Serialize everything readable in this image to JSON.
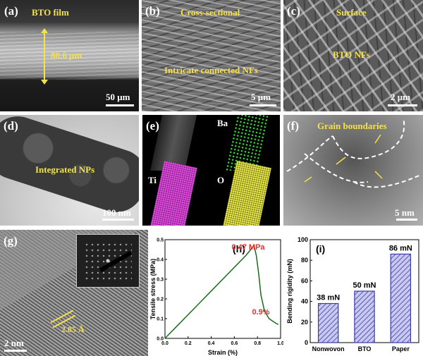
{
  "panels": {
    "a": {
      "label": "(a)",
      "title": "BTO film",
      "thickness": "88.6 μm",
      "scale": "50 μm"
    },
    "b": {
      "label": "(b)",
      "title": "Cross-sectional",
      "subtitle": "Intricate connected NFs",
      "scale": "5 μm"
    },
    "c": {
      "label": "(c)",
      "title": "Surface",
      "subtitle": "BTO NFs",
      "scale": "2 μm"
    },
    "d": {
      "label": "(d)",
      "title": "Integrated NPs",
      "scale": "100 nm"
    },
    "e": {
      "label": "(e)",
      "maps": [
        "Ba",
        "Ti",
        "O"
      ]
    },
    "f": {
      "label": "(f)",
      "title": "Grain boundaries",
      "scale": "5 nm"
    },
    "g": {
      "label": "(g)",
      "spacing": "2.85 Å",
      "scale": "2 nm"
    },
    "h": {
      "label": "(h)",
      "peak_label": "0.47 MPa",
      "strain_label": "0.9%"
    },
    "i": {
      "label": "(i)"
    }
  },
  "colors": {
    "accent": "#f5e24a",
    "red": "#e53030",
    "green": "#1a6b1a",
    "bar": "#3a3aa8"
  },
  "chart_data": [
    {
      "type": "line",
      "title": "",
      "xlabel": "Strain (%)",
      "ylabel": "Tensile stress (MPa)",
      "xlim": [
        0,
        1.0
      ],
      "ylim": [
        0,
        0.5
      ],
      "xticks": [
        "0.0",
        "0.2",
        "0.4",
        "0.6",
        "0.8",
        "1.0"
      ],
      "yticks": [
        "0.0",
        "0.1",
        "0.2",
        "0.3",
        "0.4",
        "0.5"
      ],
      "x": [
        0.0,
        0.1,
        0.2,
        0.3,
        0.4,
        0.5,
        0.6,
        0.7,
        0.77,
        0.79,
        0.81,
        0.83,
        0.86,
        0.9,
        0.95,
        0.98
      ],
      "y": [
        0.0,
        0.06,
        0.12,
        0.18,
        0.24,
        0.3,
        0.36,
        0.42,
        0.47,
        0.42,
        0.33,
        0.22,
        0.14,
        0.1,
        0.08,
        0.07
      ],
      "annotations": [
        "0.47 MPa",
        "0.9%"
      ]
    },
    {
      "type": "bar",
      "title": "",
      "xlabel": "",
      "ylabel": "Bending rigidity (mN)",
      "categories": [
        "Nonwovon",
        "BTO",
        "Paper"
      ],
      "values": [
        38,
        50,
        86
      ],
      "value_labels": [
        "38 mN",
        "50 mN",
        "86 mN"
      ],
      "ylim": [
        0,
        100
      ],
      "yticks": [
        "0",
        "20",
        "40",
        "60",
        "80",
        "100"
      ]
    }
  ]
}
